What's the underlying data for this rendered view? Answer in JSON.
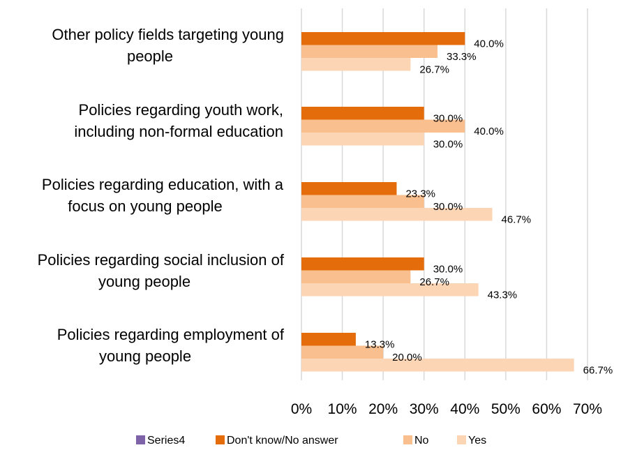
{
  "chart_data": {
    "type": "bar",
    "orientation": "horizontal",
    "categories": [
      [
        "Other policy fields targeting young",
        "people"
      ],
      [
        "Policies regarding youth work,",
        "including non-formal education"
      ],
      [
        "Policies regarding education, with a",
        "focus on young people"
      ],
      [
        "Policies regarding social inclusion of",
        "young people"
      ],
      [
        "Policies regarding employment of",
        "young people"
      ]
    ],
    "series": [
      {
        "name": "Series4",
        "color": "#7f63a8",
        "values": [
          null,
          null,
          null,
          null,
          null
        ],
        "labels": []
      },
      {
        "name": "Don't know/No answer",
        "color": "#e46c0a",
        "values": [
          40.0,
          30.0,
          23.3,
          30.0,
          13.3
        ],
        "labels": [
          "40.0%",
          "30.0%",
          "23.3%",
          "30.0%",
          "13.3%"
        ]
      },
      {
        "name": "No",
        "color": "#f9bf8f",
        "values": [
          33.3,
          40.0,
          30.0,
          26.7,
          20.0
        ],
        "labels": [
          "33.3%",
          "40.0%",
          "30.0%",
          "26.7%",
          "20.0%"
        ]
      },
      {
        "name": "Yes",
        "color": "#fcd5b5",
        "values": [
          26.7,
          30.0,
          46.7,
          43.3,
          66.7
        ],
        "labels": [
          "26.7%",
          "30.0%",
          "46.7%",
          "43.3%",
          "66.7%"
        ]
      }
    ],
    "xlim": [
      0,
      70
    ],
    "xticks": [
      "0%",
      "10%",
      "20%",
      "30%",
      "40%",
      "50%",
      "60%",
      "70%"
    ],
    "grid": "vertical",
    "legend_position": "bottom",
    "title": "",
    "xlabel": "",
    "ylabel": ""
  }
}
